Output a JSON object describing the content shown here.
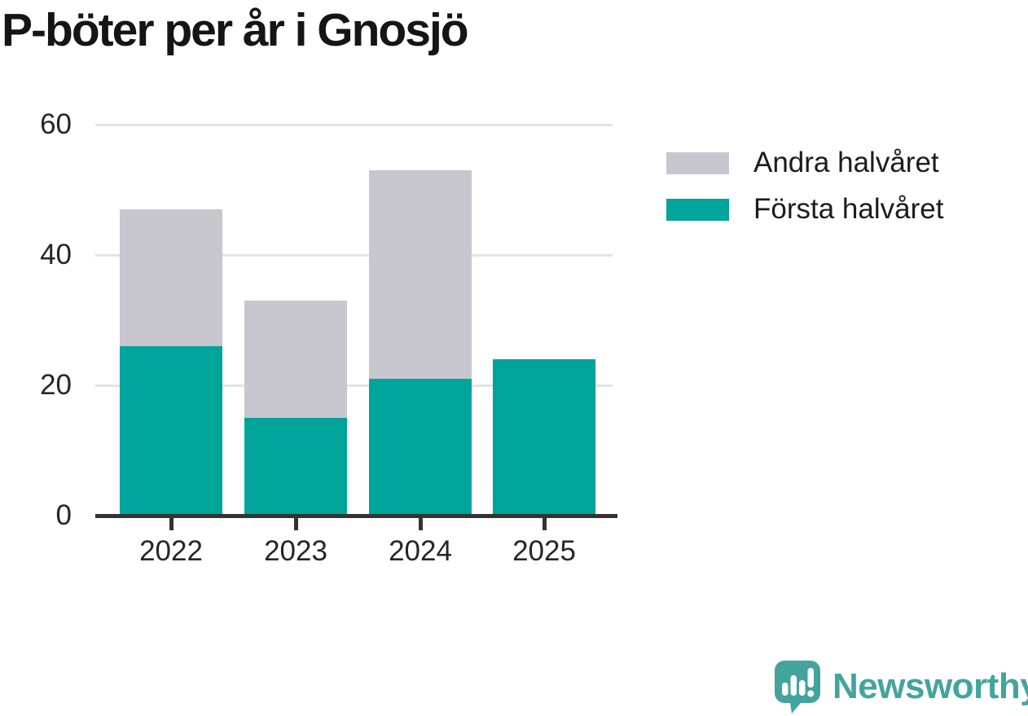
{
  "title": "P-böter per år i Gnosjö",
  "chart_data": {
    "type": "bar",
    "stacked": true,
    "title": "P-böter per år i Gnosjö",
    "categories": [
      "2022",
      "2023",
      "2024",
      "2025"
    ],
    "series": [
      {
        "name": "Första halvåret",
        "color": "#00A49B",
        "values": [
          26,
          15,
          21,
          24
        ]
      },
      {
        "name": "Andra halvåret",
        "color": "#C8C6CE",
        "values": [
          21,
          18,
          32,
          0
        ]
      }
    ],
    "totals": [
      47,
      33,
      53,
      24
    ],
    "xlabel": "",
    "ylabel": "",
    "ylim": [
      0,
      60
    ],
    "yticks": [
      0,
      20,
      40,
      60
    ],
    "grid": "horizontal",
    "legend_position": "outside-right-top",
    "legend_order": [
      "Andra halvåret",
      "Första halvåret"
    ]
  },
  "legend": {
    "items": [
      {
        "label": "Andra halvåret",
        "color": "#C8C6CE"
      },
      {
        "label": "Första halvåret",
        "color": "#00A49B"
      }
    ]
  },
  "branding": {
    "name": "Newsworthy",
    "color": "#43A49D"
  },
  "colors": {
    "background": "#FFFFFF",
    "title_text": "#151515",
    "axis_text": "#262626",
    "axis_line": "#333333",
    "gridline": "#E4E4E4",
    "bar_first_half": "#00A49B",
    "bar_second_half": "#C8C6CE",
    "brand_teal": "#43A49D"
  }
}
